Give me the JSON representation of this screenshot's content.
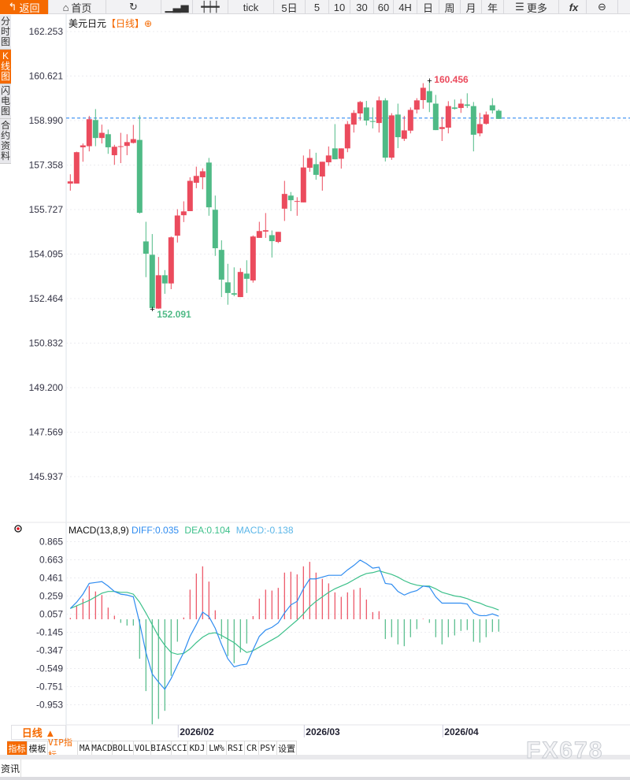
{
  "toolbar": {
    "items": [
      {
        "label": "返回",
        "icon": "back-arrow-icon"
      },
      {
        "label": "首页",
        "icon": "home-icon"
      },
      {
        "label": "",
        "icon": "refresh-icon"
      },
      {
        "label": "",
        "icon": "bar-chart-icon"
      },
      {
        "label": "",
        "icon": "candlestick-icon"
      },
      {
        "label": "tick"
      },
      {
        "label": "5日"
      },
      {
        "label": "5"
      },
      {
        "label": "10"
      },
      {
        "label": "30"
      },
      {
        "label": "60"
      },
      {
        "label": "4H"
      },
      {
        "label": "日"
      },
      {
        "label": "周"
      },
      {
        "label": "月"
      },
      {
        "label": "年"
      },
      {
        "label": "更多",
        "icon": "menu-icon"
      },
      {
        "label": "fx",
        "icon": "function-icon"
      },
      {
        "label": "",
        "icon": "zoom-out-icon"
      }
    ]
  },
  "sidebar": {
    "items": [
      {
        "label": "分时图"
      },
      {
        "label": "K线图",
        "active": true
      },
      {
        "label": "闪电图"
      },
      {
        "label": "合约资料"
      }
    ]
  },
  "header": {
    "symbol": "美元日元",
    "period": "【日线】",
    "add_icon": "⊕"
  },
  "macd_header": {
    "name": "MACD(13,8,9)",
    "diff": "DIFF:0.035",
    "dea": "DEA:0.104",
    "macd": "MACD:-0.138"
  },
  "colors": {
    "up": "#eb4b5d",
    "down": "#4fba86",
    "diff": "#2f8cf0",
    "dea": "#3cc08a",
    "macd_text": "#5ab6e8",
    "accent": "#f56a00",
    "dashed": "#1a7cf0"
  },
  "period_button": "日线 ▲",
  "bottom_tabs": [
    "指标",
    "模板",
    "VIP指标",
    "MA",
    "MACD",
    "BOLL",
    "VOL",
    "BIAS",
    "CCI",
    "KDJ",
    "LW%",
    "RSI",
    "CR",
    "PSY",
    "设置"
  ],
  "news_tab": "资讯",
  "watermark": "FX678",
  "chart_data": [
    {
      "type": "candlestick",
      "title": "美元日元 日线",
      "y_ticks": [
        "162.253",
        "160.621",
        "158.990",
        "157.358",
        "155.727",
        "154.095",
        "152.464",
        "150.832",
        "149.200",
        "147.569",
        "145.937"
      ],
      "ylim": [
        145.937,
        162.253
      ],
      "x_labels": [
        {
          "label": "2026/02",
          "index": 17
        },
        {
          "label": "2026/03",
          "index": 37
        },
        {
          "label": "2026/04",
          "index": 59
        }
      ],
      "last_price_line": 159.08,
      "annotations": [
        {
          "label": "160.456",
          "index": 57,
          "value": 160.456,
          "kind": "high"
        },
        {
          "label": "152.091",
          "index": 13,
          "value": 152.091,
          "kind": "low"
        }
      ],
      "ohlc": [
        [
          156.68,
          157.02,
          156.42,
          156.76
        ],
        [
          156.68,
          157.85,
          156.68,
          157.83
        ],
        [
          158.01,
          158.15,
          157.48,
          158.08
        ],
        [
          158.05,
          159.16,
          157.86,
          159.04
        ],
        [
          159.01,
          159.41,
          158.05,
          158.35
        ],
        [
          158.35,
          158.84,
          158.15,
          158.54
        ],
        [
          158.49,
          158.66,
          157.77,
          158.01
        ],
        [
          157.72,
          158.1,
          157.37,
          158.03
        ],
        [
          158.03,
          158.54,
          157.43,
          158.05
        ],
        [
          158.06,
          158.49,
          157.72,
          158.2
        ],
        [
          158.17,
          158.83,
          158.15,
          158.31
        ],
        [
          158.28,
          159.18,
          155.58,
          155.61
        ],
        [
          154.56,
          155.28,
          153.25,
          154.11
        ],
        [
          154.07,
          154.83,
          152.091,
          152.12
        ],
        [
          152.1,
          153.99,
          152.09,
          153.32
        ],
        [
          153.32,
          153.51,
          152.64,
          153.02
        ],
        [
          153.02,
          154.74,
          152.81,
          154.71
        ],
        [
          154.77,
          155.74,
          154.52,
          155.51
        ],
        [
          155.52,
          156.03,
          155.27,
          155.66
        ],
        [
          155.67,
          156.91,
          155.67,
          156.78
        ],
        [
          156.71,
          157.3,
          156.51,
          156.96
        ],
        [
          156.91,
          157.24,
          156.47,
          157.13
        ],
        [
          157.45,
          157.62,
          155.5,
          155.81
        ],
        [
          155.72,
          156.24,
          154.03,
          154.31
        ],
        [
          154.25,
          154.6,
          152.52,
          153.16
        ],
        [
          153.06,
          153.74,
          152.24,
          152.67
        ],
        [
          152.66,
          153.61,
          152.55,
          152.61
        ],
        [
          152.52,
          153.58,
          152.52,
          153.44
        ],
        [
          153.38,
          153.87,
          152.67,
          153.19
        ],
        [
          153.13,
          154.78,
          153.05,
          154.74
        ],
        [
          154.69,
          155.28,
          154.69,
          154.94
        ],
        [
          154.92,
          155.6,
          154.69,
          154.97
        ],
        [
          154.79,
          154.96,
          153.97,
          154.57
        ],
        [
          154.54,
          154.91,
          154.5,
          154.91
        ],
        [
          155.76,
          156.78,
          155.31,
          156.3
        ],
        [
          156.24,
          156.37,
          155.67,
          156.07
        ],
        [
          156.02,
          156.18,
          155.5,
          156.04
        ],
        [
          155.99,
          157.71,
          155.99,
          157.27
        ],
        [
          157.26,
          157.94,
          157.11,
          157.62
        ],
        [
          157.39,
          157.81,
          156.82,
          157.0
        ],
        [
          156.94,
          157.48,
          156.42,
          157.48
        ],
        [
          157.46,
          158.04,
          157.33,
          157.71
        ],
        [
          157.97,
          158.86,
          157.57,
          157.57
        ],
        [
          157.59,
          157.97,
          157.23,
          157.97
        ],
        [
          157.97,
          158.97,
          157.83,
          158.86
        ],
        [
          158.84,
          159.37,
          158.55,
          159.27
        ],
        [
          159.25,
          159.71,
          158.99,
          159.67
        ],
        [
          159.47,
          159.71,
          158.81,
          158.99
        ],
        [
          158.97,
          159.47,
          158.7,
          158.95
        ],
        [
          158.9,
          159.87,
          158.55,
          159.73
        ],
        [
          159.73,
          159.81,
          157.49,
          157.63
        ],
        [
          157.63,
          159.26,
          157.55,
          159.18
        ],
        [
          159.21,
          159.61,
          157.98,
          158.38
        ],
        [
          158.32,
          159.16,
          158.24,
          158.63
        ],
        [
          158.62,
          159.47,
          158.52,
          159.38
        ],
        [
          159.39,
          159.81,
          159.25,
          159.73
        ],
        [
          159.74,
          160.36,
          159.42,
          160.19
        ],
        [
          160.07,
          160.456,
          159.3,
          159.65
        ],
        [
          159.61,
          159.93,
          158.64,
          158.64
        ],
        [
          158.68,
          159.12,
          158.24,
          158.75
        ],
        [
          158.73,
          159.7,
          158.52,
          159.52
        ],
        [
          159.47,
          159.76,
          159.39,
          159.42
        ],
        [
          159.45,
          159.78,
          159.27,
          159.61
        ],
        [
          159.58,
          159.99,
          159.45,
          159.53
        ],
        [
          159.52,
          159.67,
          157.86,
          158.47
        ],
        [
          158.52,
          159.27,
          158.41,
          158.86
        ],
        [
          158.87,
          159.32,
          158.84,
          159.21
        ],
        [
          159.55,
          159.81,
          159.25,
          159.36
        ],
        [
          159.35,
          159.4,
          159.05,
          159.05
        ]
      ]
    },
    {
      "type": "macd",
      "params": "13,8,9",
      "y_ticks": [
        "0.865",
        "0.663",
        "0.461",
        "0.259",
        "0.057",
        "-0.145",
        "-0.347",
        "-0.549",
        "-0.751",
        "-0.953"
      ],
      "ylim": [
        -1.17,
        0.9
      ],
      "diff": [
        0.12,
        0.19,
        0.28,
        0.4,
        0.41,
        0.42,
        0.37,
        0.31,
        0.28,
        0.27,
        0.25,
        -0.04,
        -0.37,
        -0.61,
        -0.7,
        -0.78,
        -0.66,
        -0.51,
        -0.37,
        -0.19,
        -0.06,
        0.08,
        0.03,
        -0.1,
        -0.28,
        -0.44,
        -0.53,
        -0.51,
        -0.5,
        -0.34,
        -0.19,
        -0.12,
        -0.09,
        -0.04,
        0.07,
        0.16,
        0.2,
        0.34,
        0.45,
        0.45,
        0.47,
        0.49,
        0.49,
        0.49,
        0.55,
        0.6,
        0.66,
        0.62,
        0.57,
        0.58,
        0.4,
        0.39,
        0.31,
        0.27,
        0.3,
        0.32,
        0.37,
        0.36,
        0.25,
        0.18,
        0.18,
        0.18,
        0.18,
        0.17,
        0.07,
        0.04,
        0.04,
        0.06,
        0.035
      ],
      "dea": [
        0.12,
        0.15,
        0.18,
        0.21,
        0.25,
        0.29,
        0.31,
        0.31,
        0.3,
        0.3,
        0.28,
        0.19,
        0.07,
        -0.06,
        -0.19,
        -0.29,
        -0.37,
        -0.39,
        -0.38,
        -0.33,
        -0.26,
        -0.2,
        -0.16,
        -0.15,
        -0.18,
        -0.22,
        -0.26,
        -0.32,
        -0.37,
        -0.35,
        -0.31,
        -0.27,
        -0.23,
        -0.19,
        -0.13,
        -0.07,
        -0.01,
        0.06,
        0.14,
        0.2,
        0.25,
        0.3,
        0.34,
        0.37,
        0.4,
        0.44,
        0.48,
        0.51,
        0.52,
        0.54,
        0.52,
        0.5,
        0.47,
        0.43,
        0.4,
        0.38,
        0.37,
        0.37,
        0.34,
        0.3,
        0.28,
        0.26,
        0.25,
        0.23,
        0.2,
        0.18,
        0.15,
        0.13,
        0.104
      ],
      "hist": [
        0.015,
        0.15,
        0.23,
        0.37,
        0.31,
        0.27,
        0.13,
        0.04,
        -0.04,
        -0.07,
        -0.07,
        -0.44,
        -0.8,
        -1.17,
        -1.11,
        -1.02,
        -0.63,
        -0.25,
        0.02,
        0.33,
        0.51,
        0.59,
        0.42,
        0.1,
        -0.22,
        -0.41,
        -0.49,
        -0.37,
        -0.27,
        0.035,
        0.23,
        0.33,
        0.32,
        0.35,
        0.52,
        0.53,
        0.5,
        0.59,
        0.64,
        0.52,
        0.45,
        0.4,
        0.3,
        0.25,
        0.3,
        0.33,
        0.35,
        0.22,
        0.08,
        0.09,
        -0.22,
        -0.2,
        -0.28,
        -0.3,
        -0.2,
        -0.11,
        0.005,
        -0.04,
        -0.2,
        -0.28,
        -0.2,
        -0.18,
        -0.13,
        -0.12,
        -0.25,
        -0.26,
        -0.2,
        -0.14,
        -0.138
      ]
    }
  ]
}
